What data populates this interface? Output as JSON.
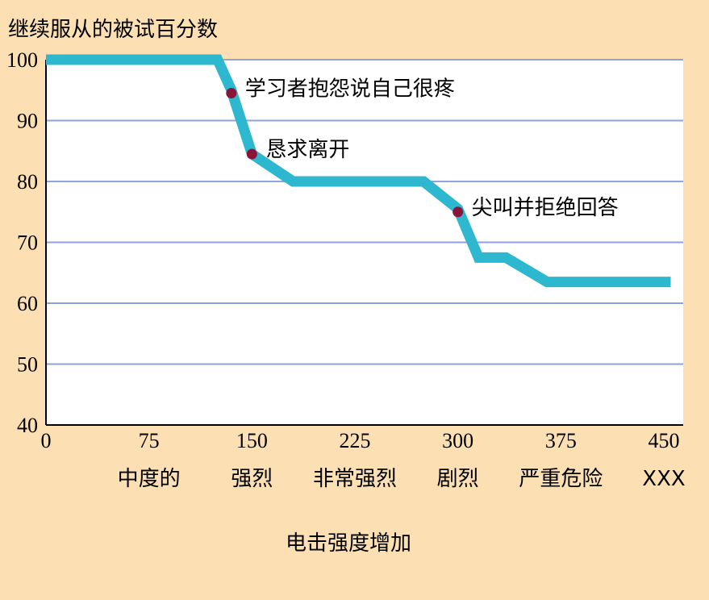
{
  "chart_data": {
    "type": "line",
    "ylabel": "继续服从的被试百分数",
    "xlabel": "电击强度增加",
    "xlim": [
      0,
      450
    ],
    "ylim": [
      40,
      100
    ],
    "x_ticks": [
      0,
      75,
      150,
      225,
      300,
      375,
      450
    ],
    "y_ticks": [
      40,
      50,
      60,
      70,
      80,
      90,
      100
    ],
    "category_labels": [
      {
        "x": 75,
        "label": "中度的"
      },
      {
        "x": 150,
        "label": "强烈"
      },
      {
        "x": 225,
        "label": "非常强烈"
      },
      {
        "x": 300,
        "label": "剧烈"
      },
      {
        "x": 375,
        "label": "严重危险"
      },
      {
        "x": 450,
        "label": "XXX"
      }
    ],
    "grid": true,
    "series": [
      {
        "color": "#2DB8CF",
        "points": [
          [
            0,
            100
          ],
          [
            125,
            100
          ],
          [
            135,
            95
          ],
          [
            150,
            84.5
          ],
          [
            180,
            80
          ],
          [
            275,
            80
          ],
          [
            300,
            75.5
          ],
          [
            315,
            67.5
          ],
          [
            335,
            67.5
          ],
          [
            365,
            63.5
          ],
          [
            455,
            63.5
          ]
        ]
      }
    ],
    "annotations": [
      {
        "x": 135,
        "y": 94.5,
        "text": "学习者抱怨说自己很疼"
      },
      {
        "x": 150,
        "y": 84.5,
        "text": "恳求离开"
      },
      {
        "x": 300,
        "y": 75,
        "text": "尖叫并拒绝回答"
      }
    ],
    "colors": {
      "background": "#FCE0B3",
      "plot_background": "#FFFFFF",
      "grid": "#8EA3D9",
      "line": "#2DB8CF",
      "marker": "#8A1538"
    }
  }
}
